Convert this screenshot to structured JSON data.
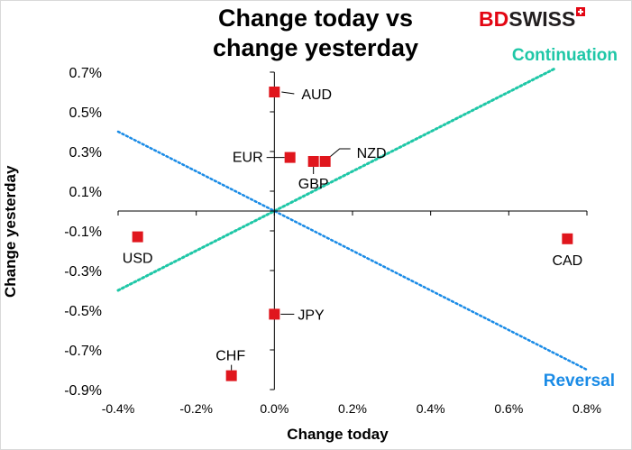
{
  "chart_data": {
    "type": "scatter",
    "title": "Change today vs change yesterday",
    "title_lines": [
      "Change today vs",
      "change yesterday"
    ],
    "xlabel": "Change today",
    "ylabel": "Change yesterday",
    "xlim": [
      -0.4,
      0.8
    ],
    "ylim": [
      -0.9,
      0.7
    ],
    "x_ticks": [
      {
        "value": -0.4,
        "label": "-0.4%"
      },
      {
        "value": -0.2,
        "label": "-0.2%"
      },
      {
        "value": 0.0,
        "label": "0.0%"
      },
      {
        "value": 0.2,
        "label": "0.2%"
      },
      {
        "value": 0.4,
        "label": "0.4%"
      },
      {
        "value": 0.6,
        "label": "0.6%"
      },
      {
        "value": 0.8,
        "label": "0.8%"
      }
    ],
    "y_ticks": [
      {
        "value": 0.7,
        "label": "0.7%"
      },
      {
        "value": 0.5,
        "label": "0.5%"
      },
      {
        "value": 0.3,
        "label": "0.3%"
      },
      {
        "value": 0.1,
        "label": "0.1%"
      },
      {
        "value": -0.1,
        "label": "-0.1%"
      },
      {
        "value": -0.3,
        "label": "-0.3%"
      },
      {
        "value": -0.5,
        "label": "-0.5%"
      },
      {
        "value": -0.7,
        "label": "-0.7%"
      },
      {
        "value": -0.9,
        "label": "-0.9%"
      }
    ],
    "grid": false,
    "marker_color": "#e0161d",
    "points": [
      {
        "label": "AUD",
        "x": 0.0,
        "y": 0.6
      },
      {
        "label": "NZD",
        "x": 0.13,
        "y": 0.25
      },
      {
        "label": "EUR",
        "x": 0.04,
        "y": 0.27
      },
      {
        "label": "GBP",
        "x": 0.1,
        "y": 0.25
      },
      {
        "label": "USD",
        "x": -0.35,
        "y": -0.13
      },
      {
        "label": "CAD",
        "x": 0.75,
        "y": -0.14
      },
      {
        "label": "JPY",
        "x": 0.0,
        "y": -0.52
      },
      {
        "label": "CHF",
        "x": -0.11,
        "y": -0.83
      }
    ],
    "lines": [
      {
        "name": "Continuation",
        "color": "#1fc7a7",
        "from": [
          -0.4,
          -0.4
        ],
        "to": [
          0.72,
          0.72
        ]
      },
      {
        "name": "Reversal",
        "color": "#1a8be6",
        "from": [
          -0.4,
          0.4
        ],
        "to": [
          0.8,
          -0.8
        ]
      }
    ]
  },
  "logo": {
    "bd": "BD",
    "swiss": "SWISS",
    "icon": "swiss-cross-icon"
  }
}
